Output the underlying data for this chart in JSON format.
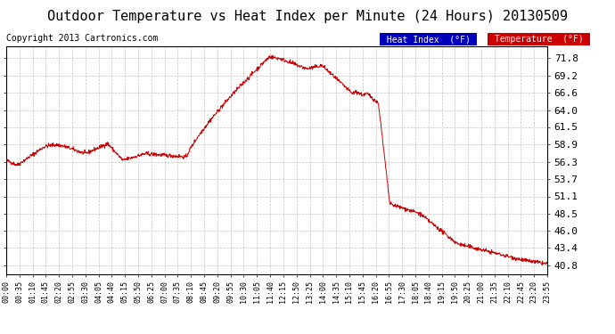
{
  "title": "Outdoor Temperature vs Heat Index per Minute (24 Hours) 20130509",
  "copyright": "Copyright 2013 Cartronics.com",
  "ylabel_ticks": [
    40.8,
    43.4,
    46.0,
    48.5,
    51.1,
    53.7,
    56.3,
    58.9,
    61.5,
    64.0,
    66.6,
    69.2,
    71.8
  ],
  "ymin": 39.5,
  "ymax": 73.5,
  "line_color": "#cc0000",
  "background_color": "#ffffff",
  "plot_bg_color": "#ffffff",
  "grid_color": "#bbbbbb",
  "legend_heat_index_bg": "#0000bb",
  "legend_temp_bg": "#cc0000",
  "legend_heat_index_text": "Heat Index  (°F)",
  "legend_temp_text": "Temperature  (°F)",
  "title_fontsize": 11,
  "copyright_fontsize": 7,
  "tick_fontsize": 8,
  "x_tick_labels": [
    "00:00",
    "00:35",
    "01:10",
    "01:45",
    "02:20",
    "02:55",
    "03:30",
    "04:05",
    "04:40",
    "05:15",
    "05:50",
    "06:25",
    "07:00",
    "07:35",
    "08:10",
    "08:45",
    "09:20",
    "09:55",
    "10:30",
    "11:05",
    "11:40",
    "12:15",
    "12:50",
    "13:25",
    "14:00",
    "14:35",
    "15:10",
    "15:45",
    "16:20",
    "16:55",
    "17:30",
    "18:05",
    "18:40",
    "19:15",
    "19:50",
    "20:25",
    "21:00",
    "21:35",
    "22:10",
    "22:45",
    "23:20",
    "23:55"
  ]
}
